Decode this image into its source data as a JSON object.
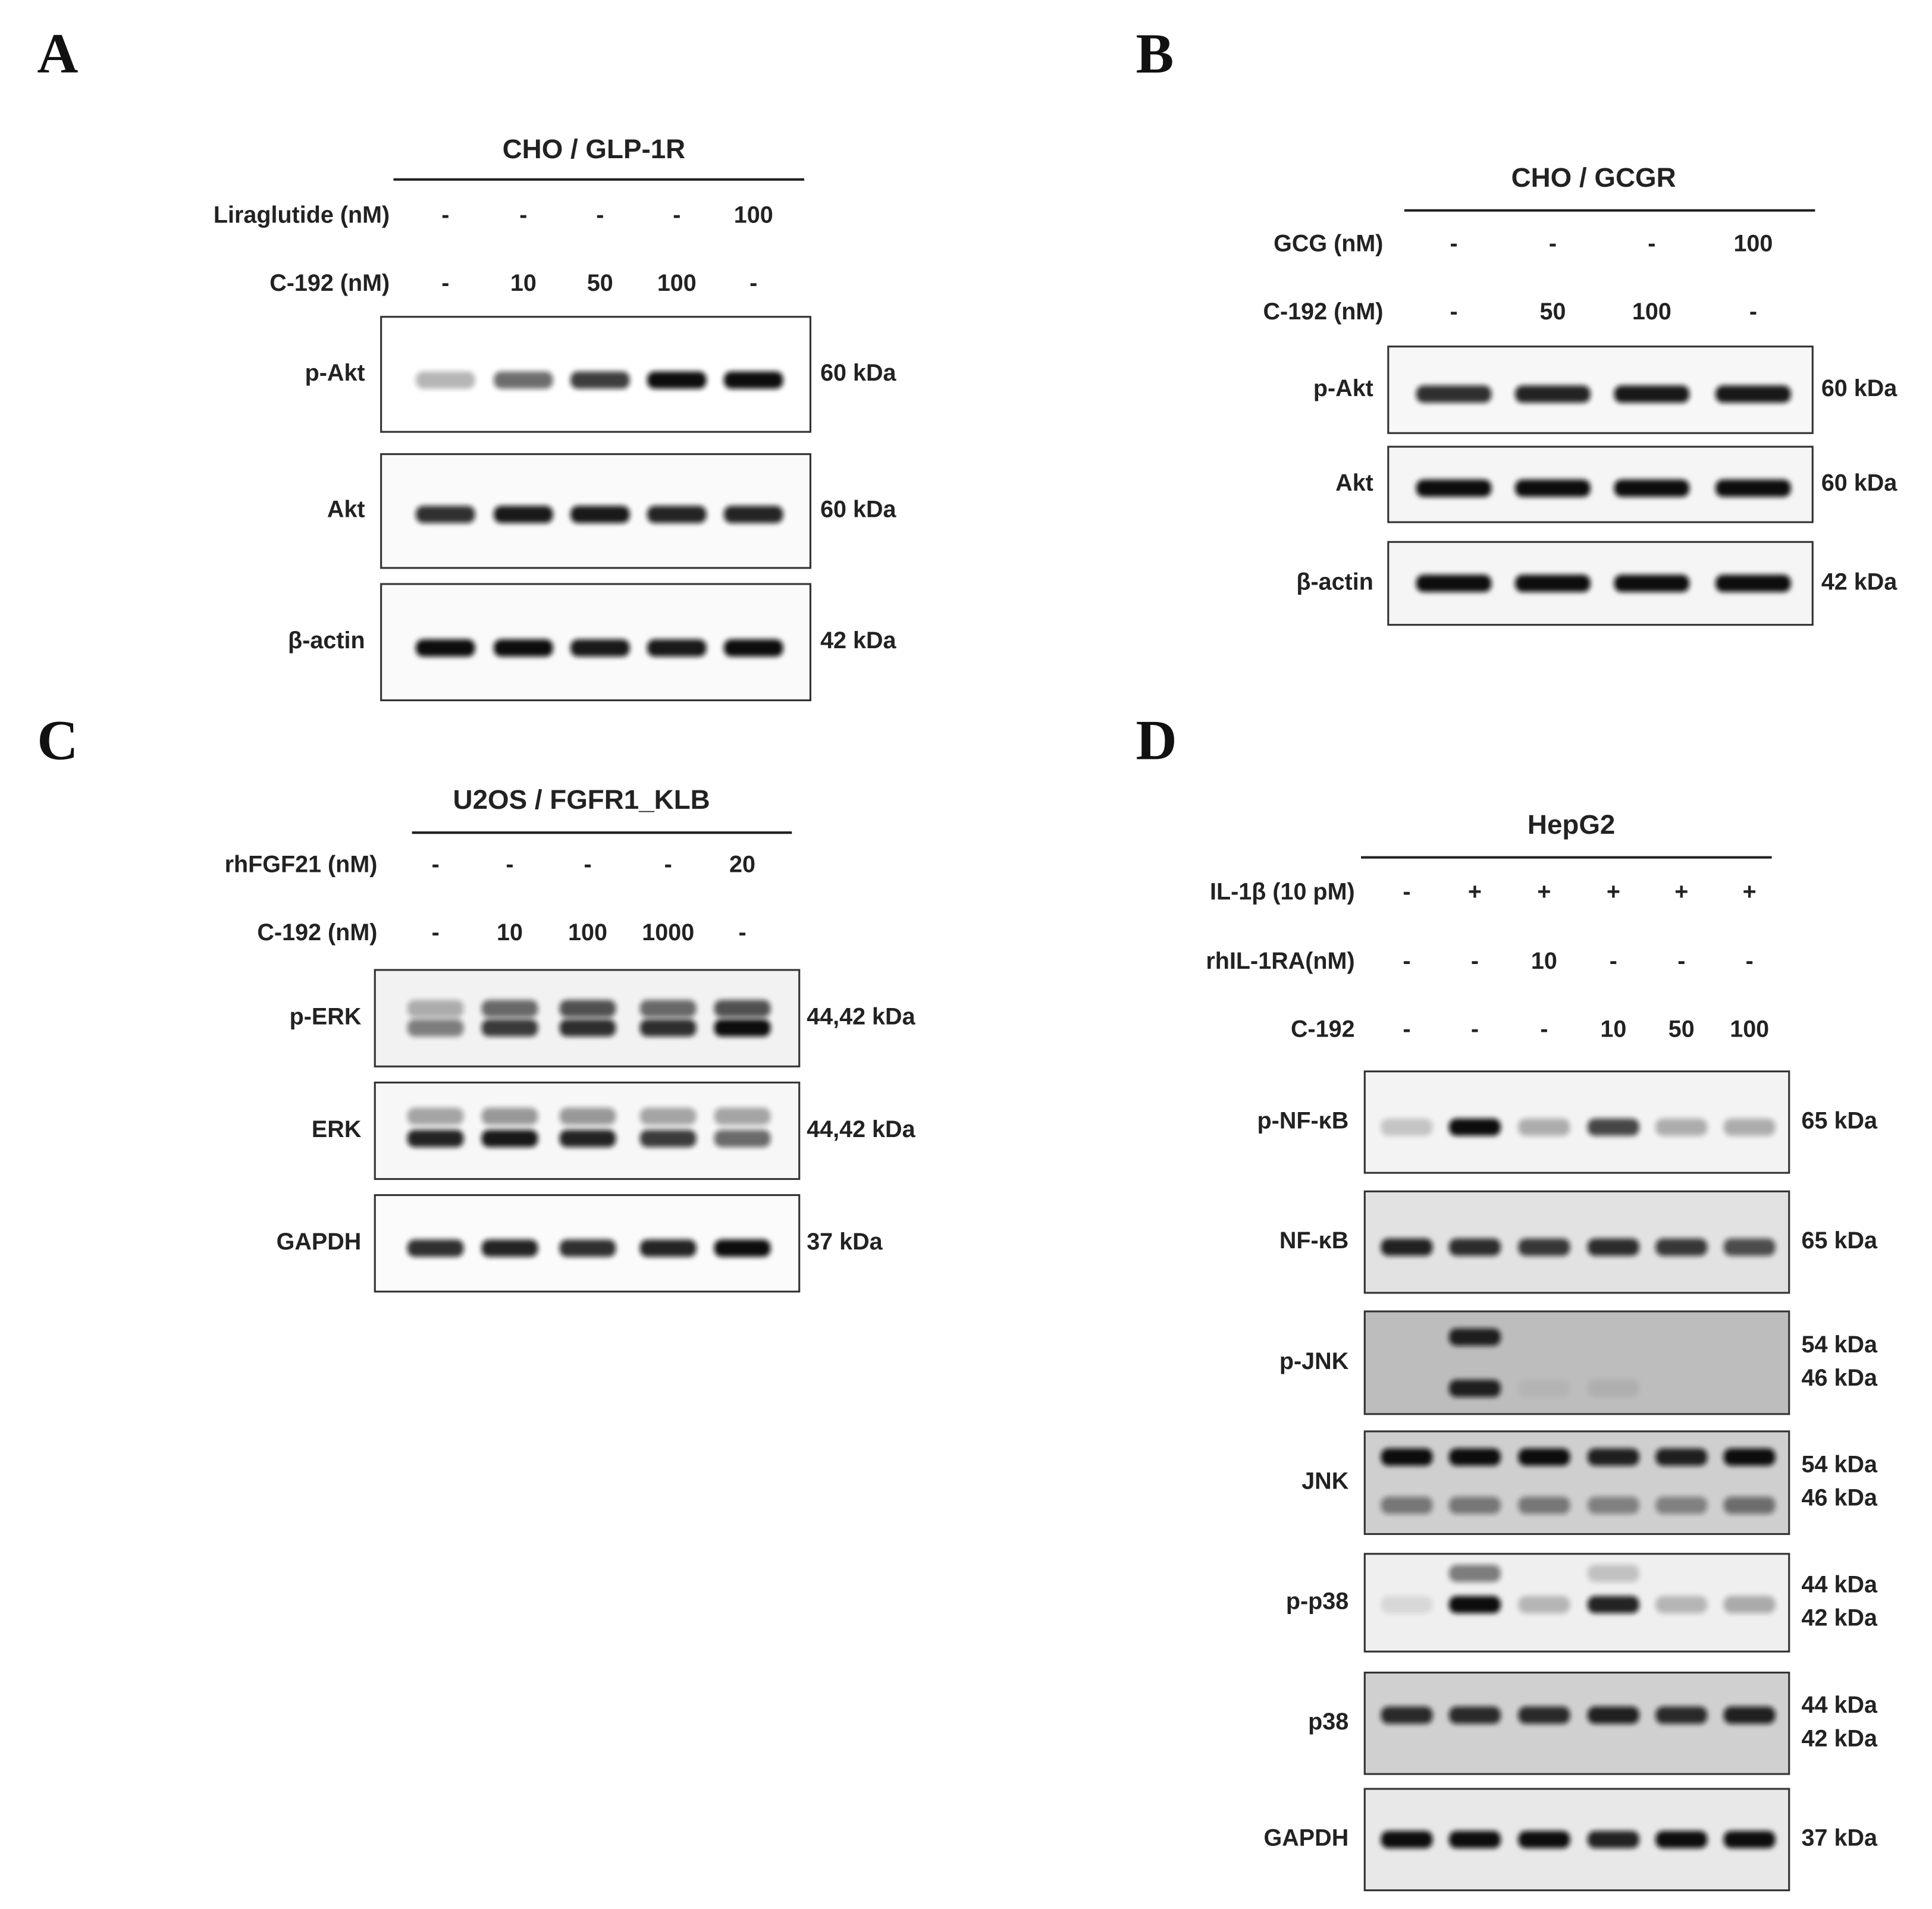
{
  "panels": [
    {
      "letter": "A",
      "title": "CHO / GLP-1R",
      "treatments": [
        {
          "label": "Liraglutide (nM)",
          "values": [
            "-",
            "-",
            "-",
            "-",
            "100"
          ]
        },
        {
          "label": "C-192 (nM)",
          "values": [
            "-",
            "10",
            "50",
            "100",
            "-"
          ]
        }
      ],
      "blots": [
        {
          "label": "p-Akt",
          "kda": [
            "60 kDa"
          ]
        },
        {
          "label": "Akt",
          "kda": [
            "60 kDa"
          ]
        },
        {
          "label": "β-actin",
          "kda": [
            "42 kDa"
          ]
        }
      ]
    },
    {
      "letter": "B",
      "title": "CHO / GCGR",
      "treatments": [
        {
          "label": "GCG (nM)",
          "values": [
            "-",
            "-",
            "-",
            "100"
          ]
        },
        {
          "label": "C-192 (nM)",
          "values": [
            "-",
            "50",
            "100",
            "-"
          ]
        }
      ],
      "blots": [
        {
          "label": "p-Akt",
          "kda": [
            "60 kDa"
          ]
        },
        {
          "label": "Akt",
          "kda": [
            "60 kDa"
          ]
        },
        {
          "label": "β-actin",
          "kda": [
            "42 kDa"
          ]
        }
      ]
    },
    {
      "letter": "C",
      "title": "U2OS / FGFR1_KLB",
      "treatments": [
        {
          "label": "rhFGF21 (nM)",
          "values": [
            "-",
            "-",
            "-",
            "-",
            "20"
          ]
        },
        {
          "label": "C-192 (nM)",
          "values": [
            "-",
            "10",
            "100",
            "1000",
            "-"
          ]
        }
      ],
      "blots": [
        {
          "label": "p-ERK",
          "kda": [
            "44,42 kDa"
          ]
        },
        {
          "label": "ERK",
          "kda": [
            "44,42 kDa"
          ]
        },
        {
          "label": "GAPDH",
          "kda": [
            "37 kDa"
          ]
        }
      ]
    },
    {
      "letter": "D",
      "title": "HepG2",
      "treatments": [
        {
          "label": "IL-1β (10 pM)",
          "values": [
            "-",
            "+",
            "+",
            "+",
            "+",
            "+"
          ]
        },
        {
          "label": "rhIL-1RA(nM)",
          "values": [
            "-",
            "-",
            "10",
            "-",
            "-",
            "-"
          ]
        },
        {
          "label": "C-192",
          "values": [
            "-",
            "-",
            "-",
            "10",
            "50",
            "100"
          ]
        }
      ],
      "blots": [
        {
          "label": "p-NF-κB",
          "kda": [
            "65 kDa"
          ]
        },
        {
          "label": "NF-κB",
          "kda": [
            "65 kDa"
          ]
        },
        {
          "label": "p-JNK",
          "kda": [
            "54 kDa",
            "46 kDa"
          ]
        },
        {
          "label": "JNK",
          "kda": [
            "54 kDa",
            "46 kDa"
          ]
        },
        {
          "label": "p-p38",
          "kda": [
            "44 kDa",
            "42 kDa"
          ]
        },
        {
          "label": "p38",
          "kda": [
            "44 kDa",
            "42 kDa"
          ]
        },
        {
          "label": "GAPDH",
          "kda": [
            "37 kDa"
          ]
        }
      ]
    }
  ]
}
